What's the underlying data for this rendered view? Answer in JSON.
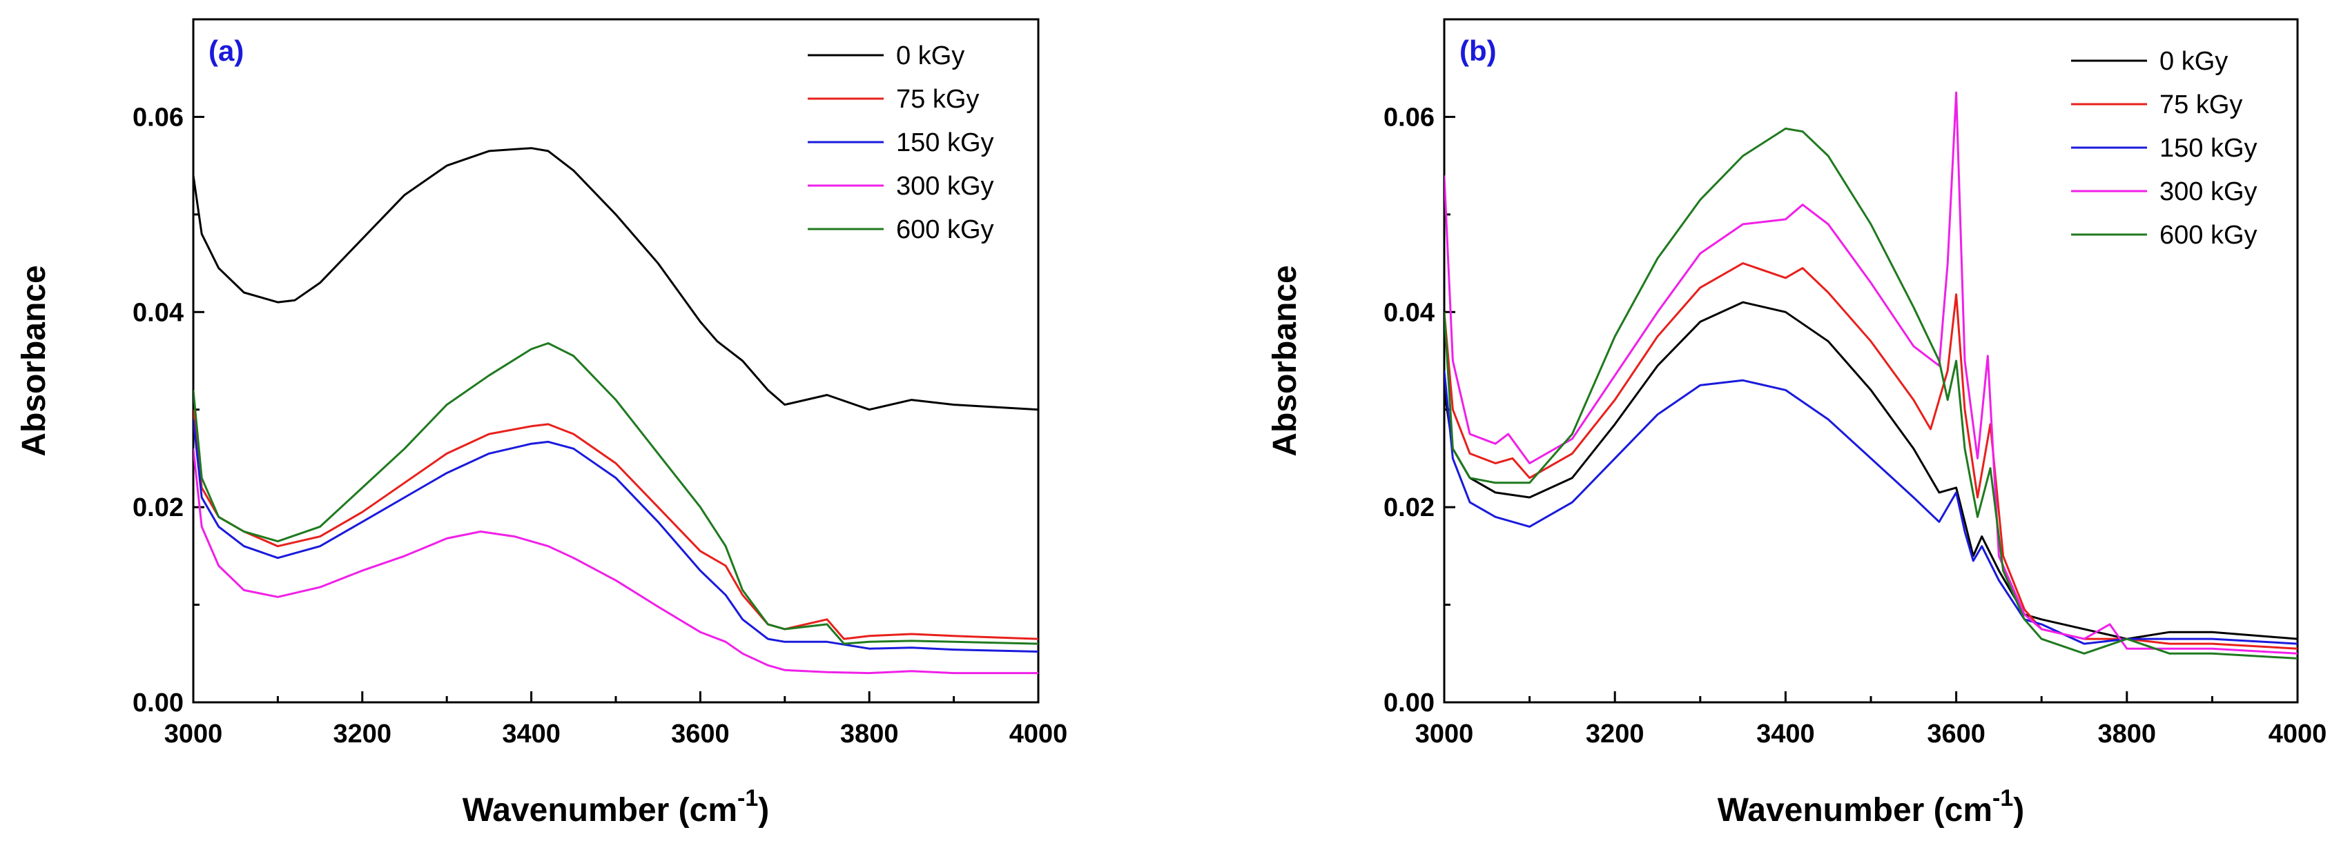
{
  "chart_data": [
    {
      "type": "line",
      "panel_label": "(a)",
      "panel_label_color": "#1a1adc",
      "xlabel": "Wavenumber (cm",
      "xlabel_sup": "-1",
      "xlabel_close": ")",
      "ylabel": "Absorbance",
      "xlim": [
        3000,
        4000
      ],
      "ylim": [
        0,
        0.07
      ],
      "xticks": [
        "3000",
        "3200",
        "3400",
        "3600",
        "3800",
        "4000"
      ],
      "yticks": [
        "0.00",
        "0.02",
        "0.04",
        "0.06"
      ],
      "legend_position": "top-right",
      "series": [
        {
          "name": "0 kGy",
          "color": "#000000",
          "x": [
            3000,
            3010,
            3030,
            3060,
            3100,
            3120,
            3150,
            3200,
            3250,
            3300,
            3350,
            3400,
            3420,
            3450,
            3500,
            3550,
            3600,
            3620,
            3650,
            3680,
            3700,
            3750,
            3800,
            3850,
            3900,
            4000
          ],
          "y": [
            0.054,
            0.048,
            0.0445,
            0.042,
            0.041,
            0.0412,
            0.043,
            0.0475,
            0.052,
            0.055,
            0.0565,
            0.0568,
            0.0565,
            0.0545,
            0.05,
            0.045,
            0.039,
            0.037,
            0.035,
            0.032,
            0.0305,
            0.0315,
            0.03,
            0.031,
            0.0305,
            0.03
          ]
        },
        {
          "name": "75 kGy",
          "color": "#e8201c",
          "x": [
            3000,
            3010,
            3030,
            3060,
            3100,
            3150,
            3200,
            3250,
            3300,
            3350,
            3400,
            3420,
            3450,
            3500,
            3550,
            3600,
            3630,
            3650,
            3680,
            3700,
            3750,
            3770,
            3800,
            3850,
            3900,
            4000
          ],
          "y": [
            0.03,
            0.022,
            0.019,
            0.0175,
            0.016,
            0.017,
            0.0195,
            0.0225,
            0.0255,
            0.0275,
            0.0283,
            0.0285,
            0.0275,
            0.0245,
            0.02,
            0.0155,
            0.014,
            0.011,
            0.008,
            0.0075,
            0.0085,
            0.0065,
            0.0068,
            0.007,
            0.0068,
            0.0065
          ]
        },
        {
          "name": "150 kGy",
          "color": "#1a1adc",
          "x": [
            3000,
            3010,
            3030,
            3060,
            3100,
            3150,
            3200,
            3250,
            3300,
            3350,
            3400,
            3420,
            3450,
            3500,
            3550,
            3600,
            3630,
            3650,
            3680,
            3700,
            3750,
            3800,
            3850,
            3900,
            4000
          ],
          "y": [
            0.029,
            0.021,
            0.018,
            0.016,
            0.0148,
            0.016,
            0.0185,
            0.021,
            0.0235,
            0.0255,
            0.0265,
            0.0267,
            0.026,
            0.023,
            0.0185,
            0.0135,
            0.011,
            0.0085,
            0.0065,
            0.0062,
            0.0062,
            0.0055,
            0.0056,
            0.0054,
            0.0052
          ]
        },
        {
          "name": "300 kGy",
          "color": "#f020e8",
          "x": [
            3000,
            3010,
            3030,
            3060,
            3100,
            3150,
            3200,
            3250,
            3300,
            3340,
            3380,
            3420,
            3450,
            3500,
            3550,
            3600,
            3630,
            3650,
            3680,
            3700,
            3750,
            3800,
            3850,
            3900,
            4000
          ],
          "y": [
            0.026,
            0.018,
            0.014,
            0.0115,
            0.0108,
            0.0118,
            0.0135,
            0.015,
            0.0168,
            0.0175,
            0.017,
            0.016,
            0.0148,
            0.0125,
            0.0098,
            0.0072,
            0.0062,
            0.005,
            0.0038,
            0.0033,
            0.0031,
            0.003,
            0.0032,
            0.003,
            0.003
          ]
        },
        {
          "name": "600 kGy",
          "color": "#1f7a1f",
          "x": [
            3000,
            3010,
            3030,
            3060,
            3100,
            3150,
            3200,
            3250,
            3300,
            3350,
            3400,
            3420,
            3450,
            3500,
            3550,
            3600,
            3630,
            3650,
            3680,
            3700,
            3750,
            3770,
            3800,
            3850,
            3900,
            4000
          ],
          "y": [
            0.032,
            0.023,
            0.019,
            0.0175,
            0.0165,
            0.018,
            0.022,
            0.026,
            0.0305,
            0.0335,
            0.0362,
            0.0368,
            0.0355,
            0.031,
            0.0255,
            0.02,
            0.016,
            0.0115,
            0.008,
            0.0075,
            0.008,
            0.006,
            0.0062,
            0.0063,
            0.0062,
            0.006
          ]
        }
      ]
    },
    {
      "type": "line",
      "panel_label": "(b)",
      "panel_label_color": "#1a1adc",
      "xlabel": "Wavenumber (cm",
      "xlabel_sup": "-1",
      "xlabel_close": ")",
      "ylabel": "Absorbance",
      "xlim": [
        3000,
        4000
      ],
      "ylim": [
        0,
        0.07
      ],
      "xticks": [
        "3000",
        "3200",
        "3400",
        "3600",
        "3800",
        "4000"
      ],
      "yticks": [
        "0.00",
        "0.02",
        "0.04",
        "0.06"
      ],
      "legend_position": "top-right",
      "series": [
        {
          "name": "0 kGy",
          "color": "#000000",
          "x": [
            3000,
            3010,
            3030,
            3060,
            3100,
            3150,
            3200,
            3250,
            3300,
            3350,
            3400,
            3450,
            3500,
            3550,
            3580,
            3600,
            3610,
            3620,
            3630,
            3650,
            3680,
            3700,
            3750,
            3800,
            3850,
            3900,
            4000
          ],
          "y": [
            0.032,
            0.026,
            0.023,
            0.0215,
            0.021,
            0.023,
            0.0285,
            0.0345,
            0.039,
            0.041,
            0.04,
            0.037,
            0.032,
            0.026,
            0.0215,
            0.022,
            0.0185,
            0.015,
            0.017,
            0.0135,
            0.009,
            0.0085,
            0.0075,
            0.0065,
            0.0072,
            0.0072,
            0.0065
          ]
        },
        {
          "name": "75 kGy",
          "color": "#e8201c",
          "x": [
            3000,
            3010,
            3030,
            3060,
            3080,
            3100,
            3150,
            3200,
            3250,
            3300,
            3350,
            3400,
            3420,
            3450,
            3500,
            3550,
            3570,
            3590,
            3600,
            3610,
            3625,
            3640,
            3655,
            3680,
            3700,
            3750,
            3800,
            3850,
            3900,
            4000
          ],
          "y": [
            0.04,
            0.03,
            0.0255,
            0.0245,
            0.025,
            0.023,
            0.0255,
            0.031,
            0.0375,
            0.0425,
            0.045,
            0.0435,
            0.0445,
            0.042,
            0.037,
            0.031,
            0.028,
            0.034,
            0.0418,
            0.03,
            0.021,
            0.0285,
            0.015,
            0.0095,
            0.0075,
            0.0065,
            0.0065,
            0.006,
            0.006,
            0.0055
          ]
        },
        {
          "name": "150 kGy",
          "color": "#1a1adc",
          "x": [
            3000,
            3010,
            3030,
            3060,
            3100,
            3150,
            3200,
            3250,
            3300,
            3350,
            3400,
            3450,
            3500,
            3550,
            3580,
            3600,
            3610,
            3620,
            3630,
            3650,
            3680,
            3700,
            3750,
            3800,
            3850,
            3900,
            4000
          ],
          "y": [
            0.034,
            0.025,
            0.0205,
            0.019,
            0.018,
            0.0205,
            0.025,
            0.0295,
            0.0325,
            0.033,
            0.032,
            0.029,
            0.025,
            0.021,
            0.0185,
            0.0215,
            0.0175,
            0.0145,
            0.016,
            0.0125,
            0.0085,
            0.008,
            0.006,
            0.0065,
            0.0065,
            0.0065,
            0.006
          ]
        },
        {
          "name": "300 kGy",
          "color": "#f020e8",
          "x": [
            3000,
            3010,
            3030,
            3060,
            3075,
            3100,
            3150,
            3200,
            3250,
            3300,
            3350,
            3400,
            3420,
            3450,
            3500,
            3550,
            3580,
            3590,
            3600,
            3610,
            3625,
            3637,
            3650,
            3680,
            3700,
            3750,
            3780,
            3800,
            3850,
            3900,
            4000
          ],
          "y": [
            0.054,
            0.035,
            0.0275,
            0.0265,
            0.0275,
            0.0245,
            0.027,
            0.0335,
            0.04,
            0.046,
            0.049,
            0.0495,
            0.051,
            0.049,
            0.043,
            0.0365,
            0.0345,
            0.045,
            0.0625,
            0.035,
            0.025,
            0.0355,
            0.015,
            0.009,
            0.0075,
            0.0065,
            0.008,
            0.0055,
            0.0055,
            0.0055,
            0.005
          ]
        },
        {
          "name": "600 kGy",
          "color": "#1f7a1f",
          "x": [
            3000,
            3010,
            3030,
            3060,
            3100,
            3150,
            3200,
            3250,
            3300,
            3350,
            3400,
            3420,
            3450,
            3500,
            3550,
            3580,
            3590,
            3600,
            3610,
            3625,
            3640,
            3655,
            3680,
            3700,
            3750,
            3800,
            3850,
            3900,
            4000
          ],
          "y": [
            0.04,
            0.026,
            0.023,
            0.0225,
            0.0225,
            0.0275,
            0.0375,
            0.0455,
            0.0515,
            0.056,
            0.0588,
            0.0585,
            0.056,
            0.049,
            0.0405,
            0.035,
            0.031,
            0.035,
            0.026,
            0.019,
            0.024,
            0.0135,
            0.0085,
            0.0065,
            0.005,
            0.0065,
            0.005,
            0.005,
            0.0045
          ]
        }
      ]
    }
  ]
}
